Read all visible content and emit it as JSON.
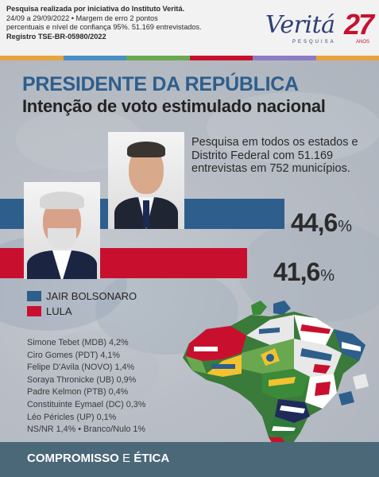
{
  "header": {
    "line1": "Pesquisa realizada por iniciativa do Instituto Veritá.",
    "line2": "24/09 a 29/09/2022 • Margem de erro 2 pontos",
    "line3": "percentuais e nível de confiança 95%. 51.169 entrevistados.",
    "line4": "Registro TSE-BR-05980/2022"
  },
  "brand": {
    "name": "Veritá",
    "sub": "PESQUISA",
    "num": "27",
    "anos": "ANOS"
  },
  "title": {
    "main": "PRESIDENTE DA REPÚBLICA",
    "sub": "Intenção de voto estimulado nacional"
  },
  "note": "Pesquisa em todos os estados e Distrito Federal com 51.169 entrevistas em 752 municípios.",
  "chart_data": {
    "type": "bar",
    "orientation": "horizontal",
    "title": "PRESIDENTE DA REPÚBLICA",
    "subtitle": "Intenção de voto estimulado nacional",
    "categories": [
      "JAIR BOLSONARO",
      "LULA"
    ],
    "values": [
      44.6,
      41.6
    ],
    "value_labels": [
      "44,6",
      "41,6"
    ],
    "unit": "%",
    "colors": [
      "#2e5e8c",
      "#c8102e"
    ],
    "legend": [
      "JAIR BOLSONARO",
      "LULA"
    ],
    "legend_placement": "bottom-left",
    "grid": false
  },
  "others": [
    "Simone Tebet (MDB) 4,2%",
    "Ciro Gomes (PDT) 4,1%",
    "Felipe D'Avila (NOVO) 1,4%",
    "Soraya Thronicke (UB) 0,9%",
    "Padre Kelmon (PTB) 0,4%",
    "Constituinte Eymael (DC) 0,3%",
    "Léo Péricles (UP) 0,1%",
    "NS/NR 1,4% • Branco/Nulo 1%"
  ],
  "footer": {
    "word1": "COMPROMISSO",
    "word2": "E",
    "word3": "ÉTICA"
  },
  "colors": {
    "bolsonaro": "#2e5e8c",
    "lula": "#c8102e",
    "footer": "#4a6878",
    "stripe": [
      "#e8a33d",
      "#4a8fc4",
      "#6aa84f",
      "#c8102e",
      "#8e7cc3",
      "#e8a33d"
    ]
  }
}
